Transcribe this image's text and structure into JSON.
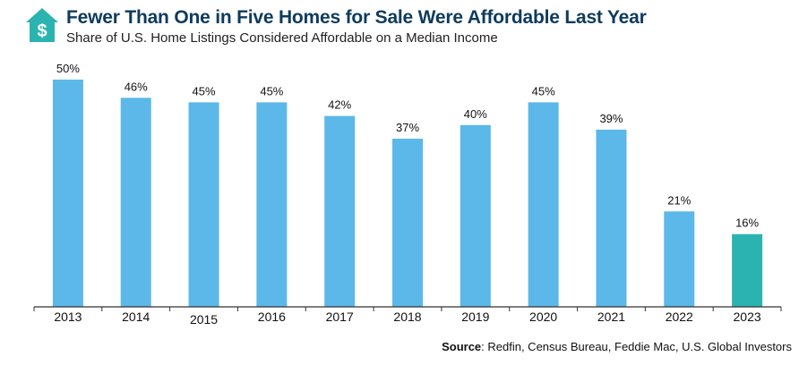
{
  "header": {
    "title": "Fewer Than One in Five Homes for Sale Were Affordable Last Year",
    "subtitle": "Share of U.S. Home Listings Considered Affordable on a Median Income",
    "logo_icon": "house-dollar-icon",
    "logo_symbol": "$"
  },
  "source": {
    "label": "Source",
    "text": ": Redfin, Census Bureau, Feddie Mac, U.S. Global Investors"
  },
  "colors": {
    "bar": "#5bb8e8",
    "highlight_bar": "#2bb3b1",
    "title": "#0d3b5e",
    "axis": "#333333",
    "logo": "#2bb3b1"
  },
  "chart_data": {
    "type": "bar",
    "categories": [
      "2013",
      "2014",
      "2015",
      "2016",
      "2017",
      "2018",
      "2019",
      "2020",
      "2021",
      "2022",
      "2023"
    ],
    "values": [
      50,
      46,
      45,
      45,
      42,
      37,
      40,
      45,
      39,
      21,
      16
    ],
    "value_labels": [
      "50%",
      "46%",
      "45%",
      "45%",
      "42%",
      "37%",
      "40%",
      "45%",
      "39%",
      "21%",
      "16%"
    ],
    "highlight_index": 10,
    "title": "Fewer Than One in Five Homes for Sale Were Affordable Last Year",
    "subtitle": "Share of U.S. Home Listings Considered Affordable on a Median Income",
    "xlabel": "",
    "ylabel": "",
    "ylim": [
      0,
      50
    ],
    "grid": false
  }
}
